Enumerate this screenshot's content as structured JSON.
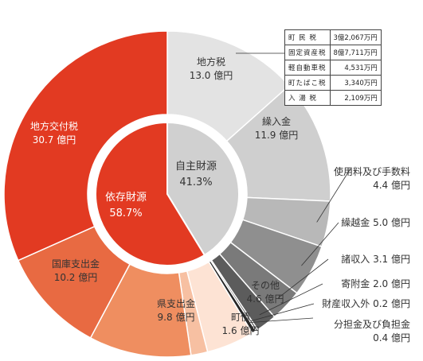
{
  "chart_data": {
    "type": "pie",
    "unit": "億円",
    "outer_ring": [
      {
        "label": "地方税",
        "value": 13.0,
        "color": "#e3e3e3",
        "text_color": "#333333"
      },
      {
        "label": "繰入金",
        "value": 11.9,
        "color": "#cfcfcf",
        "text_color": "#333333"
      },
      {
        "label": "使用料及び手数料",
        "value": 4.4,
        "color": "#b8b8b8",
        "text_color": "#333333"
      },
      {
        "label": "繰越金",
        "value": 5.0,
        "color": "#8f8f8f",
        "text_color": "#333333"
      },
      {
        "label": "諸収入",
        "value": 3.1,
        "color": "#7a7a7a",
        "text_color": "#333333"
      },
      {
        "label": "寄附金",
        "value": 2.0,
        "color": "#5c5c5c",
        "text_color": "#333333"
      },
      {
        "label": "財産収入外",
        "value": 0.2,
        "color": "#3c3c3c",
        "text_color": "#333333"
      },
      {
        "label": "分担金及び負担金",
        "value": 0.4,
        "color": "#262626",
        "text_color": "#333333"
      },
      {
        "label": "その他",
        "value": 4.6,
        "color": "#fde3d4",
        "text_color": "#333333"
      },
      {
        "label": "町債",
        "value": 1.6,
        "color": "#f7c0a2",
        "text_color": "#333333"
      },
      {
        "label": "県支出金",
        "value": 9.8,
        "color": "#ef8e60",
        "text_color": "#333333"
      },
      {
        "label": "国庫支出金",
        "value": 10.2,
        "color": "#e86a42",
        "text_color": "#333333"
      },
      {
        "label": "地方交付税",
        "value": 30.7,
        "color": "#e23a22",
        "text_color": "#ffffff"
      }
    ],
    "inner_ring": [
      {
        "label": "自主財源",
        "percent": "41.3%",
        "value": 41.3,
        "color": "#d0d0d0",
        "text_color": "#333333"
      },
      {
        "label": "依存財源",
        "percent": "58.7%",
        "value": 58.7,
        "color": "#e23a22",
        "text_color": "#ffffff"
      }
    ],
    "tax_breakdown": [
      {
        "name": "町 民 税",
        "amount": "3億2,067万円"
      },
      {
        "name": "固定資産税",
        "amount": "8億7,711万円"
      },
      {
        "name": "軽自動車税",
        "amount": "4,531万円"
      },
      {
        "name": "町たばこ税",
        "amount": "3,340万円"
      },
      {
        "name": "入 湯 税",
        "amount": "2,109万円"
      }
    ]
  }
}
